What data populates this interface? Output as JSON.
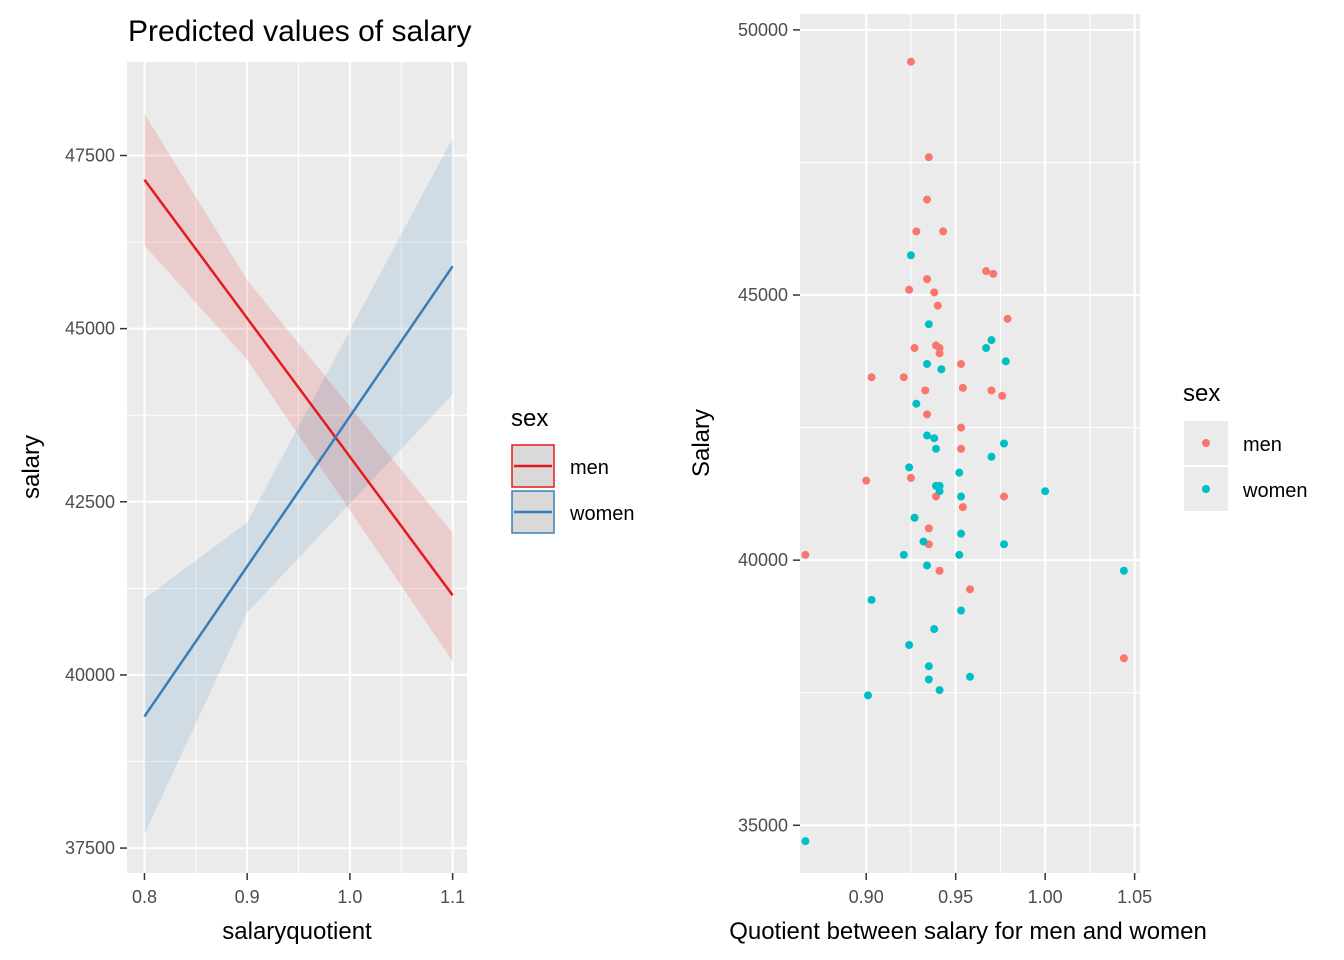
{
  "chart_data": [
    {
      "type": "line",
      "title": "Predicted values of salary",
      "xlabel": "salaryquotient",
      "ylabel": "salary",
      "xlim": [
        0.783,
        1.114
      ],
      "ylim": [
        37140,
        48850
      ],
      "xticks": [
        0.8,
        0.9,
        1.0,
        1.1
      ],
      "xtick_labels": [
        "0.8",
        "0.9",
        "1.0",
        "1.1"
      ],
      "yticks": [
        37500,
        40000,
        42500,
        45000,
        47500
      ],
      "ytick_labels": [
        "37500",
        "40000",
        "42500",
        "45000",
        "47500"
      ],
      "grid": true,
      "legend": {
        "title": "sex",
        "position": "right"
      },
      "series": [
        {
          "name": "men",
          "color": "#e41a1c",
          "x": [
            0.8,
            1.1
          ],
          "y": [
            47150,
            41150
          ],
          "ci_lower": [
            46200,
            40200
          ],
          "ci_upper": [
            48100,
            42050
          ],
          "ci_mid_x": 0.9,
          "ci_mid_lower": [
            44550
          ],
          "ci_mid_upper": [
            45700
          ]
        },
        {
          "name": "women",
          "color": "#377eb8",
          "x": [
            0.8,
            1.1
          ],
          "y": [
            39400,
            45900
          ],
          "ci_lower": [
            37700,
            44050
          ],
          "ci_upper": [
            41100,
            47750
          ],
          "ci_mid_x": 0.9,
          "ci_mid_lower": [
            40900
          ],
          "ci_mid_upper": [
            42200
          ]
        }
      ]
    },
    {
      "type": "scatter",
      "xlabel": "Quotient between salary for men and women",
      "ylabel": "Salary",
      "xlim": [
        0.863,
        1.053
      ],
      "ylim": [
        34100,
        50300
      ],
      "xticks": [
        0.9,
        0.95,
        1.0,
        1.05
      ],
      "xtick_labels": [
        "0.90",
        "0.95",
        "1.00",
        "1.05"
      ],
      "yticks": [
        35000,
        40000,
        45000,
        50000
      ],
      "ytick_labels": [
        "35000",
        "40000",
        "45000",
        "50000"
      ],
      "grid": true,
      "legend": {
        "title": "sex",
        "position": "right"
      },
      "series": [
        {
          "name": "men",
          "color": "#f8766d",
          "points": [
            [
              0.925,
              49400
            ],
            [
              0.935,
              47600
            ],
            [
              0.934,
              46800
            ],
            [
              0.928,
              46200
            ],
            [
              0.943,
              46200
            ],
            [
              0.967,
              45450
            ],
            [
              0.971,
              45400
            ],
            [
              0.924,
              45100
            ],
            [
              0.934,
              45300
            ],
            [
              0.938,
              45050
            ],
            [
              0.94,
              44800
            ],
            [
              0.979,
              44550
            ],
            [
              0.927,
              44000
            ],
            [
              0.939,
              44050
            ],
            [
              0.941,
              44000
            ],
            [
              0.941,
              43900
            ],
            [
              0.953,
              43700
            ],
            [
              0.903,
              43450
            ],
            [
              0.921,
              43450
            ],
            [
              0.933,
              43200
            ],
            [
              0.954,
              43250
            ],
            [
              0.97,
              43200
            ],
            [
              0.976,
              43100
            ],
            [
              0.934,
              42750
            ],
            [
              0.953,
              42500
            ],
            [
              0.953,
              42100
            ],
            [
              0.9,
              41500
            ],
            [
              0.925,
              41550
            ],
            [
              0.939,
              41200
            ],
            [
              0.977,
              41200
            ],
            [
              0.954,
              41000
            ],
            [
              0.935,
              40600
            ],
            [
              0.935,
              40300
            ],
            [
              0.866,
              40100
            ],
            [
              0.941,
              39800
            ],
            [
              0.958,
              39450
            ],
            [
              1.044,
              38150
            ]
          ]
        },
        {
          "name": "women",
          "color": "#00bfc4",
          "points": [
            [
              0.925,
              45750
            ],
            [
              0.935,
              44450
            ],
            [
              0.97,
              44150
            ],
            [
              0.967,
              44000
            ],
            [
              0.978,
              43750
            ],
            [
              0.934,
              43700
            ],
            [
              0.942,
              43600
            ],
            [
              0.928,
              42950
            ],
            [
              0.934,
              42350
            ],
            [
              0.938,
              42300
            ],
            [
              0.977,
              42200
            ],
            [
              0.939,
              42100
            ],
            [
              0.97,
              41950
            ],
            [
              0.924,
              41750
            ],
            [
              0.952,
              41650
            ],
            [
              0.939,
              41400
            ],
            [
              0.941,
              41400
            ],
            [
              0.941,
              41300
            ],
            [
              1.0,
              41300
            ],
            [
              0.953,
              41200
            ],
            [
              0.927,
              40800
            ],
            [
              0.953,
              40500
            ],
            [
              0.932,
              40350
            ],
            [
              0.977,
              40300
            ],
            [
              0.921,
              40100
            ],
            [
              0.952,
              40100
            ],
            [
              0.934,
              39900
            ],
            [
              1.044,
              39800
            ],
            [
              0.903,
              39250
            ],
            [
              0.953,
              39050
            ],
            [
              0.938,
              38700
            ],
            [
              0.924,
              38400
            ],
            [
              0.935,
              38000
            ],
            [
              0.958,
              37800
            ],
            [
              0.935,
              37750
            ],
            [
              0.941,
              37550
            ],
            [
              0.901,
              37450
            ],
            [
              0.866,
              34700
            ]
          ]
        }
      ]
    }
  ]
}
